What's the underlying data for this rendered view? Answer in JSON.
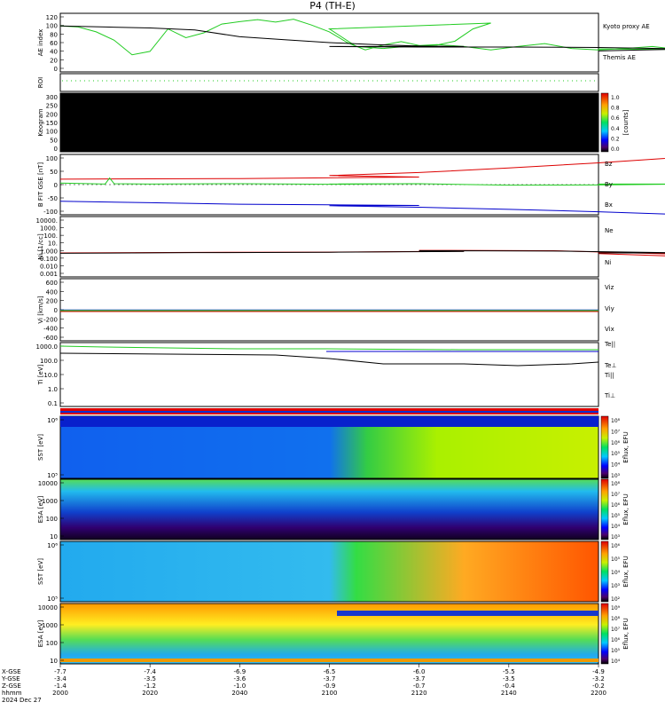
{
  "title": "P4 (TH-E)",
  "chart_data": [
    {
      "type": "line",
      "ylabel": "AE index",
      "ylim": [
        0,
        120
      ],
      "yticks": [
        "120",
        "100",
        "80",
        "60",
        "40",
        "20",
        "0"
      ],
      "series": [
        {
          "name": "Kyoto proxy AE",
          "color": "#22cc22",
          "x": [
            2000,
            2004,
            2008,
            2012,
            2016,
            2020,
            2024,
            2028,
            2032,
            2036,
            2040,
            2044,
            2048,
            2052,
            2056,
            2060,
            2064,
            2068,
            2072,
            2076,
            2080,
            2084,
            2088,
            2092,
            2096,
            2100,
            2106,
            2112,
            2118,
            2124,
            2130,
            2136,
            2142,
            2148,
            2154,
            2160,
            2166,
            2172,
            2178,
            2184,
            2190,
            2196,
            2200
          ],
          "y": [
            94,
            92,
            82,
            65,
            35,
            42,
            88,
            70,
            80,
            98,
            103,
            107,
            102,
            108,
            96,
            82,
            60,
            45,
            55,
            62,
            54,
            55,
            63,
            88,
            100,
            88,
            52,
            48,
            53,
            56,
            52,
            45,
            52,
            58,
            48,
            45,
            48,
            52,
            46,
            39,
            42,
            45,
            47
          ]
        },
        {
          "name": "Themis AE",
          "color": "#000000",
          "x": [
            2000,
            2010,
            2020,
            2030,
            2040,
            2050,
            2060,
            2070,
            2080,
            2090,
            2100,
            2120,
            2140,
            2160,
            2180,
            2200
          ],
          "y": [
            94,
            92,
            90,
            86,
            72,
            66,
            60,
            56,
            53,
            52,
            52,
            51,
            51,
            50,
            47,
            43
          ]
        }
      ]
    },
    {
      "type": "line",
      "ylabel": "ROI",
      "series": [
        {
          "name": "",
          "color": "#22cc22",
          "style": "dotted"
        }
      ]
    },
    {
      "type": "heatmap",
      "ylabel": "Keogram",
      "ylim": [
        0,
        300
      ],
      "yticks": [
        "300",
        "250",
        "200",
        "150",
        "100",
        "50",
        "0"
      ],
      "colorbar": {
        "label": "[counts]",
        "ticks": [
          "1.0",
          "0.8",
          "0.6",
          "0.4",
          "0.2",
          "0.0"
        ]
      }
    },
    {
      "type": "line",
      "ylabel": "B FIT GSE [nT]",
      "yticks": [
        "100",
        "50",
        "0",
        "-50",
        "-100"
      ],
      "ylim": [
        -100,
        100
      ],
      "series": [
        {
          "name": "Bz",
          "color": "#dd0000",
          "x": [
            2000,
            2040,
            2080,
            2100,
            2120,
            2140,
            2160,
            2180,
            2190
          ],
          "y": [
            18,
            20,
            25,
            30,
            40,
            55,
            72,
            92,
            100
          ]
        },
        {
          "name": "By",
          "color": "#22cc22",
          "x": [
            2000,
            2010,
            2011,
            2012,
            2020,
            2040,
            2060,
            2080,
            2100,
            2120,
            2140,
            2160,
            2180,
            2200
          ],
          "y": [
            5,
            2,
            22,
            3,
            2,
            3,
            1,
            3,
            2,
            3,
            -2,
            -1,
            2,
            2
          ]
        },
        {
          "name": "Bx",
          "color": "#0000cc",
          "x": [
            2000,
            2020,
            2040,
            2060,
            2080,
            2100,
            2120,
            2140,
            2160,
            2180
          ],
          "y": [
            -55,
            -60,
            -65,
            -67,
            -69,
            -70,
            -75,
            -82,
            -90,
            -100
          ]
        }
      ]
    },
    {
      "type": "line",
      "ylabel": "Ni [1/cc]",
      "ylim_log": [
        -3,
        4
      ],
      "yticks": [
        "10000.",
        "1000.",
        "100.",
        "10.",
        "1.000",
        "0.100",
        "0.010",
        "0.001"
      ],
      "series": [
        {
          "name": "Ne",
          "color": "#dd0000",
          "x": [
            2000,
            2030,
            2060,
            2090,
            2120,
            2150,
            2180,
            2190,
            2200
          ],
          "y": [
            0.6,
            0.7,
            0.75,
            0.95,
            1.2,
            1.1,
            0.4,
            0.15,
            0.5
          ]
        },
        {
          "name": "Ni",
          "color": "#000000",
          "x": [
            2000,
            2030,
            2060,
            2090,
            2120,
            2150,
            2180,
            2200
          ],
          "y": [
            0.55,
            0.65,
            0.72,
            0.9,
            1.1,
            1.0,
            0.6,
            0.6
          ]
        }
      ]
    },
    {
      "type": "line",
      "ylabel": "Vi [km/s]",
      "ylim": [
        -800,
        800
      ],
      "yticks": [
        "600",
        "400",
        "200",
        "0",
        "-200",
        "-400",
        "-600"
      ],
      "series": [
        {
          "name": "Viz",
          "color": "#dd0000"
        },
        {
          "name": "Viy",
          "color": "#22cc22"
        },
        {
          "name": "Vix",
          "color": "#0000cc"
        }
      ]
    },
    {
      "type": "line",
      "ylabel": "Ti [eV]",
      "yticks": [
        "1000.0",
        "100.0",
        "10.0",
        "1.0",
        "0.1"
      ],
      "series": [
        {
          "name": "Te||",
          "color": "#000000"
        },
        {
          "name": "Te⊥",
          "color": "#dd0000"
        },
        {
          "name": "Ti||",
          "color": "#22cc22"
        },
        {
          "name": "Ti⊥",
          "color": "#0000cc"
        }
      ]
    },
    {
      "type": "heatmap",
      "ylabel": "SST [eV]",
      "yticks": [
        "10⁶",
        "10⁵"
      ],
      "colorbar": {
        "label": "Eflux, EFU",
        "ticks": [
          "10⁸",
          "10⁷",
          "10⁶",
          "10⁵",
          "10⁴",
          "10³"
        ]
      }
    },
    {
      "type": "heatmap",
      "ylabel": "ESA [eV]",
      "yticks": [
        "10000",
        "1000",
        "100",
        "10"
      ],
      "colorbar": {
        "label": "Eflux, EFU",
        "ticks": [
          "10⁸",
          "10⁷",
          "10⁶",
          "10⁵",
          "10⁴",
          "10³"
        ]
      }
    },
    {
      "type": "heatmap",
      "ylabel": "SST [eV]",
      "yticks": [
        "10⁶",
        "10⁵"
      ],
      "colorbar": {
        "label": "Eflux, EFU",
        "ticks": [
          "10⁶",
          "10⁵",
          "10⁴",
          "10³",
          "10²"
        ]
      }
    },
    {
      "type": "heatmap",
      "ylabel": "ESA [eV]",
      "yticks": [
        "10000",
        "1000",
        "100",
        "10"
      ],
      "colorbar": {
        "label": "Eflux, EFU",
        "ticks": [
          "10⁹",
          "10⁸",
          "10⁷",
          "10⁶",
          "10⁵",
          "10⁴"
        ]
      }
    }
  ],
  "xaxis": {
    "row_labels": [
      "X-GSE",
      "Y-GSE",
      "Z-GSE",
      "hhmm",
      "2024 Dec 27"
    ],
    "ticks": [
      {
        "x": 2000,
        "rows": [
          "-7.7",
          "-3.4",
          "-1.4",
          "2000"
        ]
      },
      {
        "x": 2020,
        "rows": [
          "-7.4",
          "-3.5",
          "-1.2",
          "2020"
        ]
      },
      {
        "x": 2040,
        "rows": [
          "-6.9",
          "-3.6",
          "-1.0",
          "2040"
        ]
      },
      {
        "x": 2100,
        "rows": [
          "-6.5",
          "-3.7",
          "-0.9",
          "2100"
        ]
      },
      {
        "x": 2120,
        "rows": [
          "-6.0",
          "-3.7",
          "-0.7",
          "2120"
        ]
      },
      {
        "x": 2140,
        "rows": [
          "-5.5",
          "-3.5",
          "-0.4",
          "2140"
        ]
      },
      {
        "x": 2200,
        "rows": [
          "-4.9",
          "-3.2",
          "-0.2",
          "2200"
        ]
      }
    ]
  }
}
